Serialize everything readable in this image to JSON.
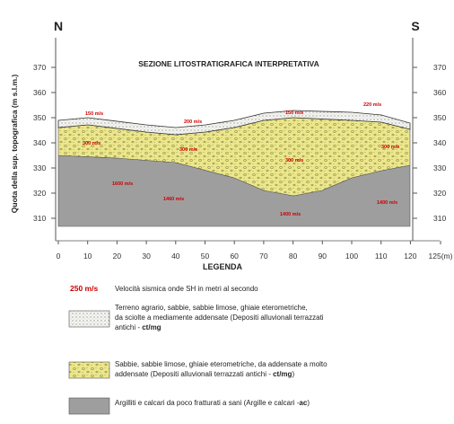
{
  "header": {
    "north": "N",
    "south": "S",
    "title": "SEZIONE LITOSTRATIGRAFICA INTERPRETATIVA"
  },
  "axes": {
    "y_label": "Quota della sup. topografica (m s.l.m.)",
    "y_ticks": [
      "370",
      "360",
      "350",
      "340",
      "330",
      "320",
      "310"
    ],
    "x_ticks": [
      "0",
      "10",
      "20",
      "30",
      "40",
      "50",
      "60",
      "70",
      "80",
      "90",
      "100",
      "110",
      "120",
      "125(m)"
    ]
  },
  "velocities": {
    "top": [
      "150 m/s",
      "200 m/s",
      "150 m/s",
      "220 m/s"
    ],
    "middle": [
      "300 m/s",
      "300 m/s",
      "300 m/s",
      "300 m/s"
    ],
    "bottom": [
      "1600 m/s",
      "1460 m/s",
      "1400 m/s",
      "1400 m/s"
    ]
  },
  "legend": {
    "title": "LEGENDA",
    "speed": {
      "sample": "250 m/s",
      "text": "Velocità sismica onde SH in metri al secondo"
    },
    "items": [
      {
        "lines": [
          "Terreno agrario, sabbie, sabbie limose, ghiaie eterometriche,",
          "da sciolte a mediamente addensate (Depositi alluvionali terrazzati",
          "antichi - "
        ],
        "code": "ct/mg",
        "code_end": ""
      },
      {
        "lines": [
          "Sabbie, sabbie limose, ghiaie eterometriche, da addensate a molto",
          "addensate (Depositi alluvionali terrazzati antichi - "
        ],
        "code": "ct/mg",
        "code_end": ")"
      },
      {
        "lines": [
          "Argilliti e calcari da poco fratturati a sani (Argille e calcari -"
        ],
        "code": "ac",
        "code_end": ")"
      }
    ]
  }
}
